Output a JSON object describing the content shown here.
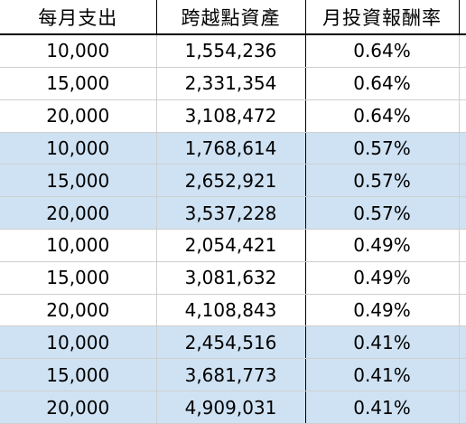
{
  "table": {
    "headers": [
      "每月支出",
      "跨越點資產",
      "月投資報酬率"
    ],
    "rows": [
      {
        "shaded": false,
        "cells": [
          "10,000",
          "1,554,236",
          "0.64%"
        ]
      },
      {
        "shaded": false,
        "cells": [
          "15,000",
          "2,331,354",
          "0.64%"
        ]
      },
      {
        "shaded": false,
        "cells": [
          "20,000",
          "3,108,472",
          "0.64%"
        ]
      },
      {
        "shaded": true,
        "cells": [
          "10,000",
          "1,768,614",
          "0.57%"
        ]
      },
      {
        "shaded": true,
        "cells": [
          "15,000",
          "2,652,921",
          "0.57%"
        ]
      },
      {
        "shaded": true,
        "cells": [
          "20,000",
          "3,537,228",
          "0.57%"
        ]
      },
      {
        "shaded": false,
        "cells": [
          "10,000",
          "2,054,421",
          "0.49%"
        ]
      },
      {
        "shaded": false,
        "cells": [
          "15,000",
          "3,081,632",
          "0.49%"
        ]
      },
      {
        "shaded": false,
        "cells": [
          "20,000",
          "4,108,843",
          "0.49%"
        ]
      },
      {
        "shaded": true,
        "cells": [
          "10,000",
          "2,454,516",
          "0.41%"
        ]
      },
      {
        "shaded": true,
        "cells": [
          "15,000",
          "3,681,773",
          "0.41%"
        ]
      },
      {
        "shaded": true,
        "cells": [
          "20,000",
          "4,909,031",
          "0.41%"
        ]
      }
    ],
    "shade_color": "#cfe2f3",
    "grid_color": "#cfcfcf"
  }
}
